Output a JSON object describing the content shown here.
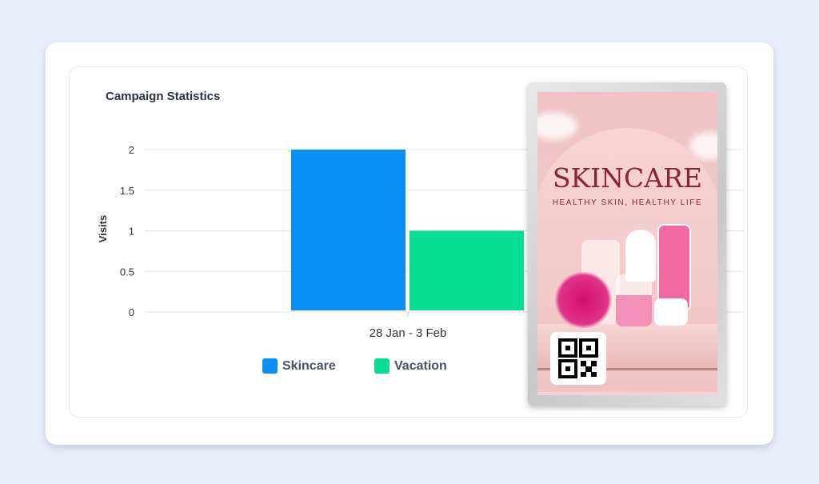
{
  "chart_data": {
    "type": "bar",
    "title": "Campaign Statistics",
    "ylabel": "Visits",
    "xlabel": "",
    "categories": [
      "28 Jan - 3 Feb"
    ],
    "series": [
      {
        "name": "Skincare",
        "values": [
          2
        ],
        "color": "#0a8ff7"
      },
      {
        "name": "Vacation",
        "values": [
          1
        ],
        "color": "#05de93"
      }
    ],
    "ylim": [
      0,
      2
    ],
    "yticks": [
      "0",
      "0.5",
      "1",
      "1.5",
      "2"
    ],
    "grid": true,
    "legend": "bottom"
  },
  "ad": {
    "title": "SKINCARE",
    "subtitle": "HEALTHY SKIN, HEALTHY LIFE",
    "qr_icon": "qr-code-icon"
  }
}
